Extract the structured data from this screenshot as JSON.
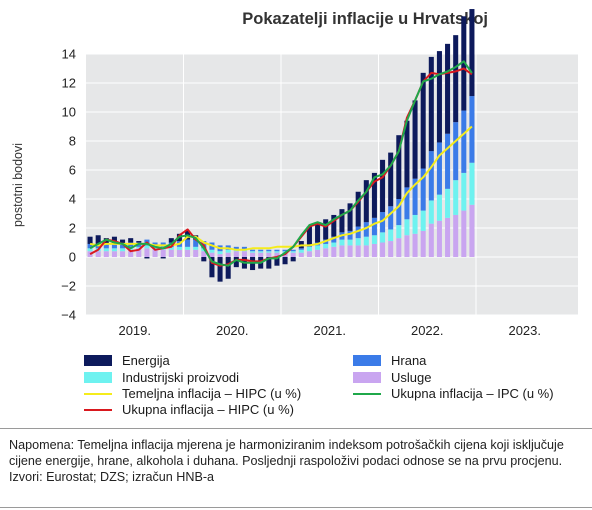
{
  "chart_data": {
    "type": "bar",
    "title": "Pokazatelji inflacije u Hrvatskoj",
    "ylabel": "postotni bodovi",
    "ylim": [
      -4,
      14
    ],
    "yticks": [
      "−4",
      "−2",
      "0",
      "2",
      "4",
      "6",
      "8",
      "10",
      "12",
      "14"
    ],
    "ytick_values": [
      -4,
      -2,
      0,
      2,
      4,
      6,
      8,
      10,
      12,
      14
    ],
    "year_labels": [
      "2019.",
      "2020.",
      "2021.",
      "2022.",
      "2023."
    ],
    "x": [
      "2019-01",
      "2019-02",
      "2019-03",
      "2019-04",
      "2019-05",
      "2019-06",
      "2019-07",
      "2019-08",
      "2019-09",
      "2019-10",
      "2019-11",
      "2019-12",
      "2020-01",
      "2020-02",
      "2020-03",
      "2020-04",
      "2020-05",
      "2020-06",
      "2020-07",
      "2020-08",
      "2020-09",
      "2020-10",
      "2020-11",
      "2020-12",
      "2021-01",
      "2021-02",
      "2021-03",
      "2021-04",
      "2021-05",
      "2021-06",
      "2021-07",
      "2021-08",
      "2021-09",
      "2021-10",
      "2021-11",
      "2021-12",
      "2022-01",
      "2022-02",
      "2022-03",
      "2022-04",
      "2022-05",
      "2022-06",
      "2022-07",
      "2022-08",
      "2022-09",
      "2022-10",
      "2022-11",
      "2022-12"
    ],
    "stacked_series": [
      {
        "name": "Energija",
        "color": "#0d1a5c",
        "values": [
          0.5,
          0.6,
          0.4,
          0.5,
          0.3,
          0.3,
          0.1,
          -0.1,
          0.0,
          -0.1,
          0.3,
          0.5,
          0.6,
          0.3,
          -0.3,
          -1.4,
          -1.7,
          -1.5,
          -0.7,
          -0.8,
          -0.9,
          -0.8,
          -0.8,
          -0.6,
          -0.5,
          -0.3,
          0.5,
          1.3,
          1.4,
          1.4,
          1.5,
          1.6,
          1.9,
          2.4,
          2.9,
          3.1,
          3.6,
          3.7,
          4.4,
          4.6,
          5.4,
          6.6,
          6.5,
          6.3,
          6.2,
          6.0,
          6.5,
          6.0
        ]
      },
      {
        "name": "Hrana",
        "color": "#3b7be8",
        "values": [
          0.3,
          0.3,
          0.3,
          0.3,
          0.3,
          0.3,
          0.3,
          0.4,
          0.3,
          0.3,
          0.3,
          0.4,
          0.5,
          0.5,
          0.5,
          0.5,
          0.4,
          0.3,
          0.2,
          0.2,
          0.1,
          0.1,
          0.1,
          0.1,
          0.1,
          0.1,
          0.1,
          0.1,
          0.2,
          0.3,
          0.4,
          0.5,
          0.6,
          0.8,
          1.0,
          1.2,
          1.4,
          1.6,
          1.8,
          2.2,
          2.5,
          2.9,
          3.4,
          3.6,
          3.8,
          4.0,
          4.3,
          4.6
        ]
      },
      {
        "name": "Industrijski proizvodi",
        "color": "#6ef2f0",
        "values": [
          0.2,
          0.2,
          0.2,
          0.2,
          0.2,
          0.2,
          0.1,
          0.2,
          0.2,
          0.2,
          0.2,
          0.2,
          0.2,
          0.2,
          0.2,
          0.2,
          0.2,
          0.2,
          0.1,
          0.1,
          0.1,
          0.1,
          0.1,
          0.1,
          0.1,
          0.1,
          0.2,
          0.3,
          0.3,
          0.3,
          0.3,
          0.4,
          0.4,
          0.5,
          0.6,
          0.6,
          0.7,
          0.8,
          0.9,
          1.1,
          1.3,
          1.4,
          1.6,
          1.8,
          2.0,
          2.4,
          2.6,
          2.9
        ]
      },
      {
        "name": "Usluge",
        "color": "#c9a5f0",
        "values": [
          0.4,
          0.4,
          0.4,
          0.4,
          0.4,
          0.5,
          0.6,
          0.6,
          0.5,
          0.5,
          0.5,
          0.5,
          0.5,
          0.5,
          0.4,
          0.3,
          0.2,
          0.3,
          0.4,
          0.4,
          0.3,
          0.3,
          0.3,
          0.3,
          0.3,
          0.3,
          0.3,
          0.4,
          0.5,
          0.6,
          0.7,
          0.8,
          0.8,
          0.8,
          0.8,
          0.9,
          1.0,
          1.1,
          1.3,
          1.5,
          1.6,
          1.8,
          2.3,
          2.5,
          2.7,
          2.9,
          3.2,
          3.6
        ]
      }
    ],
    "line_series": [
      {
        "name": "Temeljna inflacija – HIPC (u %)",
        "color": "#f5ec1b",
        "values": [
          0.9,
          0.8,
          0.9,
          0.9,
          0.9,
          0.9,
          0.9,
          0.9,
          0.8,
          0.8,
          0.8,
          0.9,
          1.4,
          1.4,
          1.0,
          0.8,
          0.6,
          0.6,
          0.5,
          0.5,
          0.6,
          0.6,
          0.6,
          0.7,
          0.7,
          0.7,
          0.8,
          0.8,
          0.9,
          1.1,
          1.3,
          1.5,
          1.6,
          1.8,
          2.0,
          2.3,
          2.5,
          3.0,
          3.5,
          4.4,
          5.0,
          5.5,
          6.2,
          7.0,
          7.5,
          8.0,
          8.5,
          9.0
        ]
      },
      {
        "name": "Ukupna inflacija – HIPC (u %)",
        "color": "#d9181e",
        "values": [
          0.2,
          0.5,
          1.2,
          1.1,
          0.9,
          0.4,
          0.5,
          1.0,
          0.5,
          0.6,
          0.7,
          1.5,
          1.9,
          1.2,
          0.8,
          -0.4,
          -0.6,
          -0.5,
          -0.2,
          -0.2,
          -0.3,
          -0.3,
          -0.1,
          0.0,
          0.2,
          0.7,
          1.4,
          2.1,
          2.3,
          2.1,
          2.5,
          2.9,
          3.2,
          3.8,
          4.5,
          5.2,
          5.5,
          6.3,
          7.3,
          9.6,
          10.8,
          12.1,
          12.7,
          12.6,
          12.7,
          12.8,
          13.0,
          12.6
        ]
      },
      {
        "name": "Ukupna inflacija – IPC (u %)",
        "color": "#1fa84a",
        "values": [
          0.6,
          0.9,
          1.2,
          1.0,
          0.9,
          0.6,
          0.9,
          0.9,
          0.7,
          0.6,
          0.9,
          1.4,
          1.5,
          1.3,
          0.6,
          -0.3,
          -0.5,
          -0.6,
          -0.2,
          -0.4,
          -0.4,
          -0.4,
          -0.1,
          -0.1,
          0.3,
          0.7,
          1.5,
          2.2,
          2.4,
          2.2,
          2.6,
          2.9,
          3.2,
          3.9,
          4.5,
          5.5,
          5.7,
          6.3,
          7.3,
          9.4,
          10.8,
          12.1,
          12.3,
          12.6,
          12.8,
          13.1,
          13.5,
          12.7
        ]
      }
    ]
  },
  "legend": {
    "energija": "Energija",
    "hrana": "Hrana",
    "industrijski": "Industrijski proizvodi",
    "usluge": "Usluge",
    "temeljna": "Temeljna inflacija – HIPC (u %)",
    "ukupna_hipc": "Ukupna inflacija – HIPC (u %)",
    "ukupna_ipc": "Ukupna inflacija – IPC (u %)"
  },
  "colors": {
    "energija": "#0d1a5c",
    "hrana": "#3b7be8",
    "industrijski": "#6ef2f0",
    "usluge": "#c9a5f0",
    "temeljna": "#f5ec1b",
    "ukupna_hipc": "#d9181e",
    "ukupna_ipc": "#1fa84a",
    "plot_bg": "#e6e7e8"
  },
  "note": {
    "text": "Napomena: Temeljna inflacija mjerena je harmoniziranim indeksom potrošačkih cijena koji isključuje cijene energije, hrane, alkohola i duhana. Posljednji raspoloživi podaci odnose se na prvu procjenu.",
    "sources": " Izvori: Eurostat; DZS; izračun HNB-a"
  }
}
